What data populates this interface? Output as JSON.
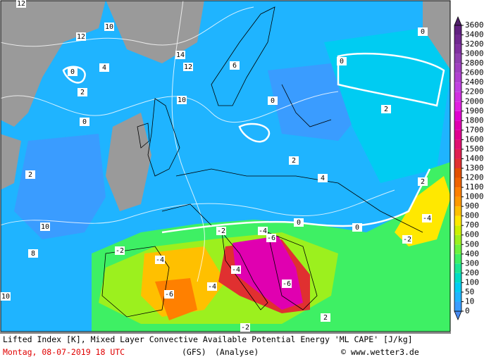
{
  "map": {
    "isoline_labels": [
      "12",
      "10",
      "12",
      "4",
      "0",
      "2",
      "0",
      "2",
      "10",
      "8",
      "14",
      "12",
      "10",
      "6",
      "0",
      "2",
      "0",
      "2",
      "4",
      "0",
      "-2",
      "-6",
      "-4",
      "-4",
      "-6",
      "-4",
      "-6",
      "-2",
      "-4",
      "-4",
      "-2",
      "0",
      "2",
      "-2",
      "2",
      "10",
      "0"
    ]
  },
  "legend": {
    "levels": [
      0,
      10,
      50,
      100,
      200,
      300,
      400,
      500,
      600,
      700,
      800,
      900,
      1000,
      1100,
      1200,
      1300,
      1400,
      1500,
      1600,
      1700,
      1800,
      1900,
      2000,
      2200,
      2400,
      2600,
      2800,
      3000,
      3200,
      3400,
      3600
    ],
    "colors": [
      "#3a9cff",
      "#1fb4ff",
      "#00ccf2",
      "#00dcc4",
      "#1ce694",
      "#3ef064",
      "#6cf23e",
      "#9cf01e",
      "#ccf000",
      "#ffe800",
      "#ffc000",
      "#ff9a00",
      "#ff8000",
      "#f06400",
      "#e25000",
      "#e03030",
      "#e02050",
      "#e01070",
      "#e00090",
      "#e000b0",
      "#e000d0",
      "#e020e0",
      "#d030e0",
      "#c040e0",
      "#b040d0",
      "#a040c0",
      "#9040b0",
      "#8030a0",
      "#702890",
      "#602080"
    ],
    "below_color": "#4a8cf0",
    "above_color": "#50206a"
  },
  "footer": {
    "description": "Lifted Index [K], Mixed Layer Convective Available Potential Energy 'ML CAPE' [J/kg]",
    "date": "Montag, 08-07-2019  18 UTC",
    "model": "(GFS)",
    "analysis": "(Analyse)",
    "credit": "© www.wetter3.de"
  }
}
